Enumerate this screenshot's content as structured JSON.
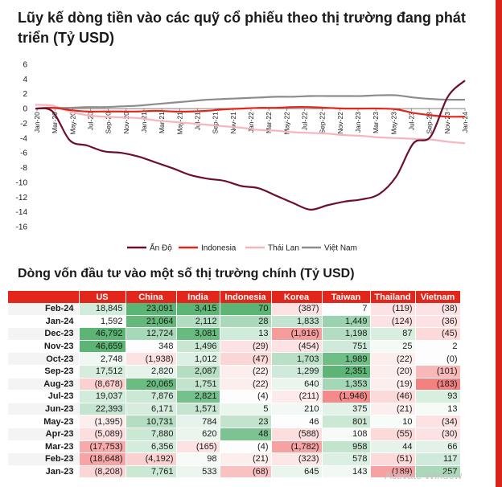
{
  "title_main": "Lũy kế dòng tiền vào các quỹ cổ phiếu theo thị trường đang phát triển (Tỷ USD)",
  "table_title": "Dòng vốn đầu tư vào một số thị trường chính (Tỷ USD)",
  "watermark_text": "Activate Window",
  "colors": {
    "brand": "#e2261c",
    "accent_bar": "#d9241c"
  },
  "chart_data": {
    "type": "line",
    "title": "Lũy kế dòng tiền vào các quỹ cổ phiếu theo thị trường đang phát triển (Tỷ USD)",
    "ylim": [
      -16,
      6
    ],
    "yticks": [
      "6",
      "4",
      "2",
      "0",
      "-2",
      "-4",
      "-6",
      "-8",
      "-10",
      "-12",
      "-14",
      "-16"
    ],
    "xticks": [
      "Jan-20",
      "Mar-20",
      "May-20",
      "Jul-20",
      "Sep-20",
      "Nov-20",
      "Jan-21",
      "Mar-21",
      "May-21",
      "Jul-21",
      "Sep-21",
      "Nov-21",
      "Jan-22",
      "Mar-22",
      "May-22",
      "Jul-22",
      "Sep-22",
      "Nov-22",
      "Jan-23",
      "Mar-23",
      "May-23",
      "Jul-23",
      "Sep-23",
      "Nov-23",
      "Jan-24"
    ],
    "grid": false,
    "legend_position": "bottom",
    "series": [
      {
        "name": "Ấn Độ",
        "color": "#6b0f2a",
        "values": [
          0,
          -0.4,
          -4.3,
          -5.0,
          -5.8,
          -6.0,
          -6.5,
          -7.3,
          -8.1,
          -9.0,
          -9.5,
          -9.8,
          -10.5,
          -10.8,
          -11.8,
          -12.8,
          -13.7,
          -13.1,
          -12.6,
          -12.3,
          -11.6,
          -9.2,
          -4.7,
          -3.8,
          1.6,
          3.8
        ]
      },
      {
        "name": "Indonesia",
        "color": "#e2261c",
        "values": [
          0,
          0.1,
          -0.2,
          -0.4,
          -0.4,
          -0.4,
          -0.4,
          -0.3,
          -0.4,
          -0.4,
          -0.3,
          -0.1,
          0,
          0.1,
          0.1,
          0.2,
          0.2,
          0.1,
          0,
          0,
          0,
          -0.1,
          -0.6,
          -0.9,
          -1.1,
          -1.1
        ]
      },
      {
        "name": "Thái Lan",
        "color": "#f5b5be",
        "values": [
          0.5,
          0.4,
          -0.4,
          -0.9,
          -1.1,
          -1.2,
          -1.3,
          -1.6,
          -1.8,
          -2.0,
          -2.2,
          -2.4,
          -2.6,
          -2.9,
          -3.0,
          -3.2,
          -3.3,
          -3.4,
          -3.6,
          -3.7,
          -3.9,
          -4.0,
          -4.1,
          -4.2,
          -4.5,
          -4.7
        ]
      },
      {
        "name": "Việt Nam",
        "color": "#8c8c8c",
        "values": [
          0,
          0.1,
          0.1,
          0.2,
          0.2,
          0.3,
          0.4,
          0.6,
          0.8,
          1.0,
          1.2,
          1.3,
          1.4,
          1.5,
          1.6,
          1.6,
          1.7,
          1.7,
          1.7,
          1.7,
          1.8,
          1.8,
          1.5,
          1.3,
          1.2,
          1.2
        ]
      }
    ]
  },
  "table": {
    "headers": [
      "",
      "US",
      "China",
      "India",
      "Indonesia",
      "Korea",
      "Taiwan",
      "Thailand",
      "Vietnam"
    ],
    "rows": [
      {
        "date": "Feb-24",
        "cells": [
          {
            "v": "18,845",
            "c": "#d2ecdc"
          },
          {
            "v": "23,091",
            "c": "#5cb574"
          },
          {
            "v": "3,415",
            "c": "#5cb574"
          },
          {
            "v": "70",
            "c": "#5cb574"
          },
          {
            "v": "(387)",
            "c": "#fce2e2"
          },
          {
            "v": "7",
            "c": "#fdfdfd"
          },
          {
            "v": "(119)",
            "c": "#fce2e2"
          },
          {
            "v": "(38)",
            "c": "#fce2e2"
          }
        ]
      },
      {
        "date": "Jan-24",
        "cells": [
          {
            "v": "1,592",
            "c": "#fdfdfd"
          },
          {
            "v": "21,064",
            "c": "#63b87a"
          },
          {
            "v": "2,112",
            "c": "#b2ddc1"
          },
          {
            "v": "28",
            "c": "#a9d9b9"
          },
          {
            "v": "1,833",
            "c": "#c4e4cf"
          },
          {
            "v": "1,449",
            "c": "#9ad3ad"
          },
          {
            "v": "(124)",
            "c": "#fce2e2"
          },
          {
            "v": "(36)",
            "c": "#fce2e2"
          }
        ]
      },
      {
        "date": "Dec-23",
        "cells": [
          {
            "v": "46,792",
            "c": "#5cb574"
          },
          {
            "v": "12,724",
            "c": "#a7d8b8"
          },
          {
            "v": "3,081",
            "c": "#68bb7f"
          },
          {
            "v": "13",
            "c": "#d0ebd9"
          },
          {
            "v": "(1,916)",
            "c": "#f69c9c"
          },
          {
            "v": "1,198",
            "c": "#b2ddc1"
          },
          {
            "v": "87",
            "c": "#d8eedf"
          },
          {
            "v": "(45)",
            "c": "#fcdada"
          }
        ]
      },
      {
        "date": "Nov-23",
        "cells": [
          {
            "v": "46,659",
            "c": "#5cb574"
          },
          {
            "v": "348",
            "c": "#fdfdfd"
          },
          {
            "v": "1,496",
            "c": "#c8e6d2"
          },
          {
            "v": "(29)",
            "c": "#fce2e2"
          },
          {
            "v": "(454)",
            "c": "#fce2e2"
          },
          {
            "v": "751",
            "c": "#cfeadb"
          },
          {
            "v": "25",
            "c": "#f4faf6"
          },
          {
            "v": "2",
            "c": "#fdfdfd"
          }
        ]
      },
      {
        "date": "Oct-23",
        "cells": [
          {
            "v": "2,748",
            "c": "#f1f8f3"
          },
          {
            "v": "(1,938)",
            "c": "#fce2e2"
          },
          {
            "v": "1,012",
            "c": "#dcefe3"
          },
          {
            "v": "(47)",
            "c": "#fbd6d6"
          },
          {
            "v": "1,703",
            "c": "#b9e0c6"
          },
          {
            "v": "1,989",
            "c": "#6fbe86"
          },
          {
            "v": "(22)",
            "c": "#fdeeee"
          },
          {
            "v": "(0)",
            "c": "#fdfdfd"
          }
        ]
      },
      {
        "date": "Sep-23",
        "cells": [
          {
            "v": "17,512",
            "c": "#d6eddd"
          },
          {
            "v": "2,820",
            "c": "#e6f3ea"
          },
          {
            "v": "2,087",
            "c": "#b4ddc2"
          },
          {
            "v": "(22)",
            "c": "#fdeeee"
          },
          {
            "v": "1,299",
            "c": "#cfeadb"
          },
          {
            "v": "2,351",
            "c": "#5cb574"
          },
          {
            "v": "(20)",
            "c": "#fdeeee"
          },
          {
            "v": "(101)",
            "c": "#f8b8b8"
          }
        ]
      },
      {
        "date": "Aug-23",
        "cells": [
          {
            "v": "(8,678)",
            "c": "#fbd0d0"
          },
          {
            "v": "20,065",
            "c": "#6abc80"
          },
          {
            "v": "1,751",
            "c": "#c2e3cc"
          },
          {
            "v": "(22)",
            "c": "#fdeeee"
          },
          {
            "v": "640",
            "c": "#e9f5ed"
          },
          {
            "v": "1,353",
            "c": "#a4d7b6"
          },
          {
            "v": "(19)",
            "c": "#fdeeee"
          },
          {
            "v": "(183)",
            "c": "#f48080"
          }
        ]
      },
      {
        "date": "Jul-23",
        "cells": [
          {
            "v": "19,037",
            "c": "#d2ecdc"
          },
          {
            "v": "7,876",
            "c": "#cbe8d4"
          },
          {
            "v": "2,821",
            "c": "#76c18b"
          },
          {
            "v": "(4)",
            "c": "#fdfdfd"
          },
          {
            "v": "(211)",
            "c": "#fdeaea"
          },
          {
            "v": "(1,946)",
            "c": "#f58a8a"
          },
          {
            "v": "(46)",
            "c": "#fcdada"
          },
          {
            "v": "93",
            "c": "#d8eedf"
          }
        ]
      },
      {
        "date": "Jun-23",
        "cells": [
          {
            "v": "22,393",
            "c": "#c4e4cf"
          },
          {
            "v": "6,171",
            "c": "#d6eddd"
          },
          {
            "v": "1,571",
            "c": "#c6e5d0"
          },
          {
            "v": "5",
            "c": "#eaf5ee"
          },
          {
            "v": "210",
            "c": "#f2f9f4"
          },
          {
            "v": "375",
            "c": "#e2f2e8"
          },
          {
            "v": "(21)",
            "c": "#fdeeee"
          },
          {
            "v": "13",
            "c": "#f6fbf8"
          }
        ]
      },
      {
        "date": "May-23",
        "cells": [
          {
            "v": "(1,395)",
            "c": "#fdeeee"
          },
          {
            "v": "10,731",
            "c": "#b4ddc2"
          },
          {
            "v": "784",
            "c": "#e6f3ea"
          },
          {
            "v": "23",
            "c": "#c2e3cc"
          },
          {
            "v": "46",
            "c": "#fdfdfd"
          },
          {
            "v": "801",
            "c": "#cbe8d4"
          },
          {
            "v": "10",
            "c": "#f8fcf9"
          },
          {
            "v": "(34)",
            "c": "#fce2e2"
          }
        ]
      },
      {
        "date": "Apr-23",
        "cells": [
          {
            "v": "(5,089)",
            "c": "#fcdede"
          },
          {
            "v": "7,880",
            "c": "#cbe8d4"
          },
          {
            "v": "620",
            "c": "#eaf5ee"
          },
          {
            "v": "48",
            "c": "#7cc391"
          },
          {
            "v": "(588)",
            "c": "#fcdede"
          },
          {
            "v": "108",
            "c": "#f6fbf8"
          },
          {
            "v": "(55)",
            "c": "#fcdada"
          },
          {
            "v": "(30)",
            "c": "#fce2e2"
          }
        ]
      },
      {
        "date": "Mar-23",
        "cells": [
          {
            "v": "(17,753)",
            "c": "#f8aaaa"
          },
          {
            "v": "6,356",
            "c": "#d4ecdb"
          },
          {
            "v": "(165)",
            "c": "#fce2e2"
          },
          {
            "v": "(4)",
            "c": "#fdfdfd"
          },
          {
            "v": "(1,782)",
            "c": "#f6a2a2"
          },
          {
            "v": "958",
            "c": "#c2e3cc"
          },
          {
            "v": "44",
            "c": "#e6f3ea"
          },
          {
            "v": "66",
            "c": "#e2f2e8"
          }
        ]
      },
      {
        "date": "Feb-23",
        "cells": [
          {
            "v": "(18,648)",
            "c": "#f8a4a4"
          },
          {
            "v": "(4,192)",
            "c": "#fbd0d0"
          },
          {
            "v": "98",
            "c": "#f6fbf8"
          },
          {
            "v": "(21)",
            "c": "#fdeeee"
          },
          {
            "v": "(323)",
            "c": "#fde6e6"
          },
          {
            "v": "578",
            "c": "#dcefe3"
          },
          {
            "v": "(51)",
            "c": "#fcdada"
          },
          {
            "v": "117",
            "c": "#cfeadb"
          }
        ]
      },
      {
        "date": "Jan-23",
        "cells": [
          {
            "v": "(8,208)",
            "c": "#fbd6d6"
          },
          {
            "v": "7,761",
            "c": "#cbe8d4"
          },
          {
            "v": "533",
            "c": "#ecf6ef"
          },
          {
            "v": "(68)",
            "c": "#f8c2c2"
          },
          {
            "v": "645",
            "c": "#e9f5ed"
          },
          {
            "v": "143",
            "c": "#f2f9f4"
          },
          {
            "v": "(189)",
            "c": "#f6a2a2"
          },
          {
            "v": "257",
            "c": "#a9d9b9"
          }
        ]
      }
    ]
  }
}
